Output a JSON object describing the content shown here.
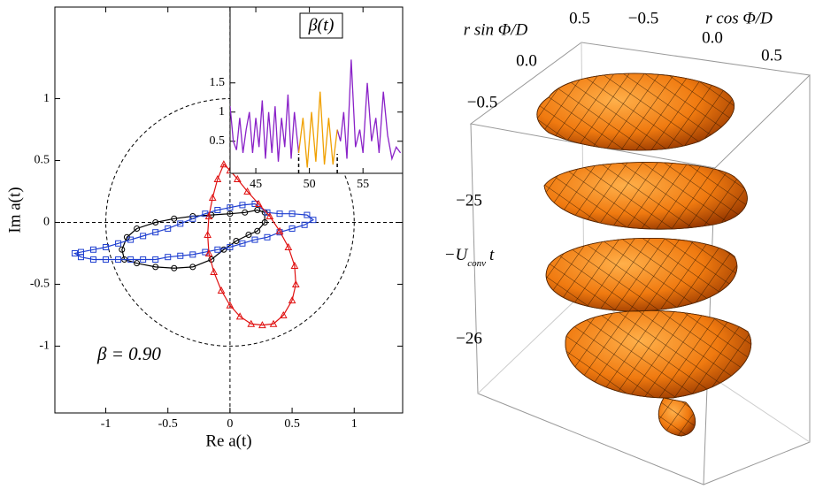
{
  "chart_data": [
    {
      "type": "scatter-line",
      "xlabel": "Re a(t)",
      "ylabel": "Im a(t)",
      "annotation": "β = 0.90",
      "xlim": [
        -1.41,
        1.39
      ],
      "ylim": [
        -1.54,
        1.74
      ],
      "xticks": [
        -1,
        -0.5,
        0,
        0.5,
        1
      ],
      "yticks": [
        -1,
        -0.5,
        0,
        0.5,
        1
      ],
      "reference": {
        "circle_radius": 1,
        "x": 0,
        "y": 0
      },
      "series": [
        {
          "color": "#000000",
          "marker": "circle",
          "x": [
            -0.85,
            -0.87,
            -0.83,
            -0.75,
            -0.6,
            -0.45,
            -0.3,
            -0.15,
            0.0,
            0.12,
            0.22,
            0.28,
            0.28,
            0.22,
            0.15,
            0.05,
            -0.05,
            -0.15,
            -0.3,
            -0.45,
            -0.6,
            -0.75
          ],
          "values": [
            -0.3,
            -0.22,
            -0.12,
            -0.05,
            0.0,
            0.03,
            0.05,
            0.06,
            0.07,
            0.08,
            0.1,
            0.08,
            0.0,
            -0.07,
            -0.1,
            -0.15,
            -0.22,
            -0.3,
            -0.36,
            -0.37,
            -0.36,
            -0.33
          ]
        },
        {
          "color": "#1f3fd0",
          "marker": "square",
          "x": [
            -1.25,
            -1.2,
            -1.1,
            -1.0,
            -0.9,
            -0.8,
            -0.7,
            -0.6,
            -0.5,
            -0.4,
            -0.3,
            -0.2,
            -0.1,
            0.0,
            0.1,
            0.2,
            0.3,
            0.4,
            0.5,
            0.6,
            0.67,
            0.62,
            0.5,
            0.4,
            0.3,
            0.2,
            0.1,
            0.0,
            -0.1,
            -0.2,
            -0.3,
            -0.4,
            -0.5,
            -0.6,
            -0.7,
            -0.8,
            -0.9,
            -1.0,
            -1.1,
            -1.2
          ],
          "values": [
            -0.25,
            -0.28,
            -0.3,
            -0.3,
            -0.3,
            -0.3,
            -0.3,
            -0.3,
            -0.28,
            -0.27,
            -0.26,
            -0.24,
            -0.22,
            -0.2,
            -0.17,
            -0.14,
            -0.12,
            -0.08,
            -0.05,
            -0.02,
            0.02,
            0.06,
            0.07,
            0.07,
            0.08,
            0.15,
            0.14,
            0.12,
            0.1,
            0.07,
            0.03,
            -0.01,
            -0.05,
            -0.08,
            -0.11,
            -0.14,
            -0.17,
            -0.2,
            -0.22,
            -0.24
          ]
        },
        {
          "color": "#e01010",
          "marker": "triangle",
          "x": [
            -0.05,
            -0.1,
            -0.14,
            -0.17,
            -0.18,
            -0.17,
            -0.13,
            -0.07,
            0.0,
            0.08,
            0.17,
            0.26,
            0.35,
            0.43,
            0.5,
            0.53,
            0.52,
            0.47,
            0.4,
            0.32,
            0.23,
            0.14,
            0.06,
            0.0
          ],
          "values": [
            0.47,
            0.35,
            0.2,
            0.05,
            -0.1,
            -0.25,
            -0.4,
            -0.55,
            -0.67,
            -0.76,
            -0.82,
            -0.83,
            -0.82,
            -0.75,
            -0.63,
            -0.5,
            -0.35,
            -0.2,
            -0.07,
            0.05,
            0.15,
            0.25,
            0.35,
            0.42
          ]
        }
      ]
    },
    {
      "type": "line",
      "title": "β(t)",
      "xlim": [
        42.6,
        58.7
      ],
      "ylim": [
        -0.05,
        2.8
      ],
      "xticks": [
        45,
        50,
        55
      ],
      "yticks": [
        0.5,
        1,
        1.5
      ],
      "window": [
        49,
        52.6
      ],
      "series": [
        {
          "color": "#8a22c8",
          "x": [
            42.6,
            42.9,
            43.2,
            43.5,
            43.8,
            44.1,
            44.4,
            44.7,
            45.0,
            45.3,
            45.6,
            45.9,
            46.2,
            46.5,
            46.8,
            47.1,
            47.4,
            47.7,
            48.0,
            48.3,
            48.6,
            49.0,
            null,
            52.6,
            52.9,
            53.2,
            53.5,
            53.9,
            54.3,
            54.7,
            55.0,
            55.4,
            55.8,
            56.2,
            56.5,
            56.9,
            57.3,
            57.7,
            58.1,
            58.5
          ],
          "values": [
            1.1,
            0.5,
            0.35,
            0.9,
            0.3,
            0.7,
            1.0,
            0.3,
            0.9,
            0.4,
            1.2,
            0.2,
            1.0,
            0.3,
            1.1,
            0.15,
            0.9,
            0.4,
            1.3,
            0.2,
            1.0,
            0.3,
            null,
            0.7,
            0.5,
            1.0,
            0.2,
            1.9,
            0.4,
            0.7,
            0.3,
            1.5,
            0.5,
            0.9,
            0.3,
            1.35,
            0.6,
            0.2,
            0.4,
            0.3
          ]
        },
        {
          "color": "#f0a000",
          "x": [
            49.0,
            49.4,
            49.8,
            50.2,
            50.6,
            51.0,
            51.4,
            51.8,
            52.2,
            52.6
          ],
          "values": [
            0.3,
            0.9,
            0.05,
            1.0,
            0.15,
            1.35,
            0.1,
            0.9,
            0.1,
            0.7
          ]
        }
      ]
    },
    {
      "type": "surface3d",
      "xlabel": "r cos Φ/D",
      "ylabel": "r sin Φ/D",
      "zlabel": {
        "main": "−U",
        "sub": "conv",
        "tail": "t"
      },
      "xticks": [
        {
          "value": -0.5,
          "label": "−0.5"
        },
        {
          "value": 0,
          "label": "0.0"
        },
        {
          "value": 0.5,
          "label": "0.5"
        }
      ],
      "yticks": [
        {
          "value": -0.5,
          "label": "−0.5"
        },
        {
          "value": 0,
          "label": "0.0"
        },
        {
          "value": 0.5,
          "label": "0.5"
        }
      ],
      "zticks": [
        {
          "value": -25,
          "label": "−25"
        },
        {
          "value": -26,
          "label": "−26"
        }
      ]
    }
  ]
}
